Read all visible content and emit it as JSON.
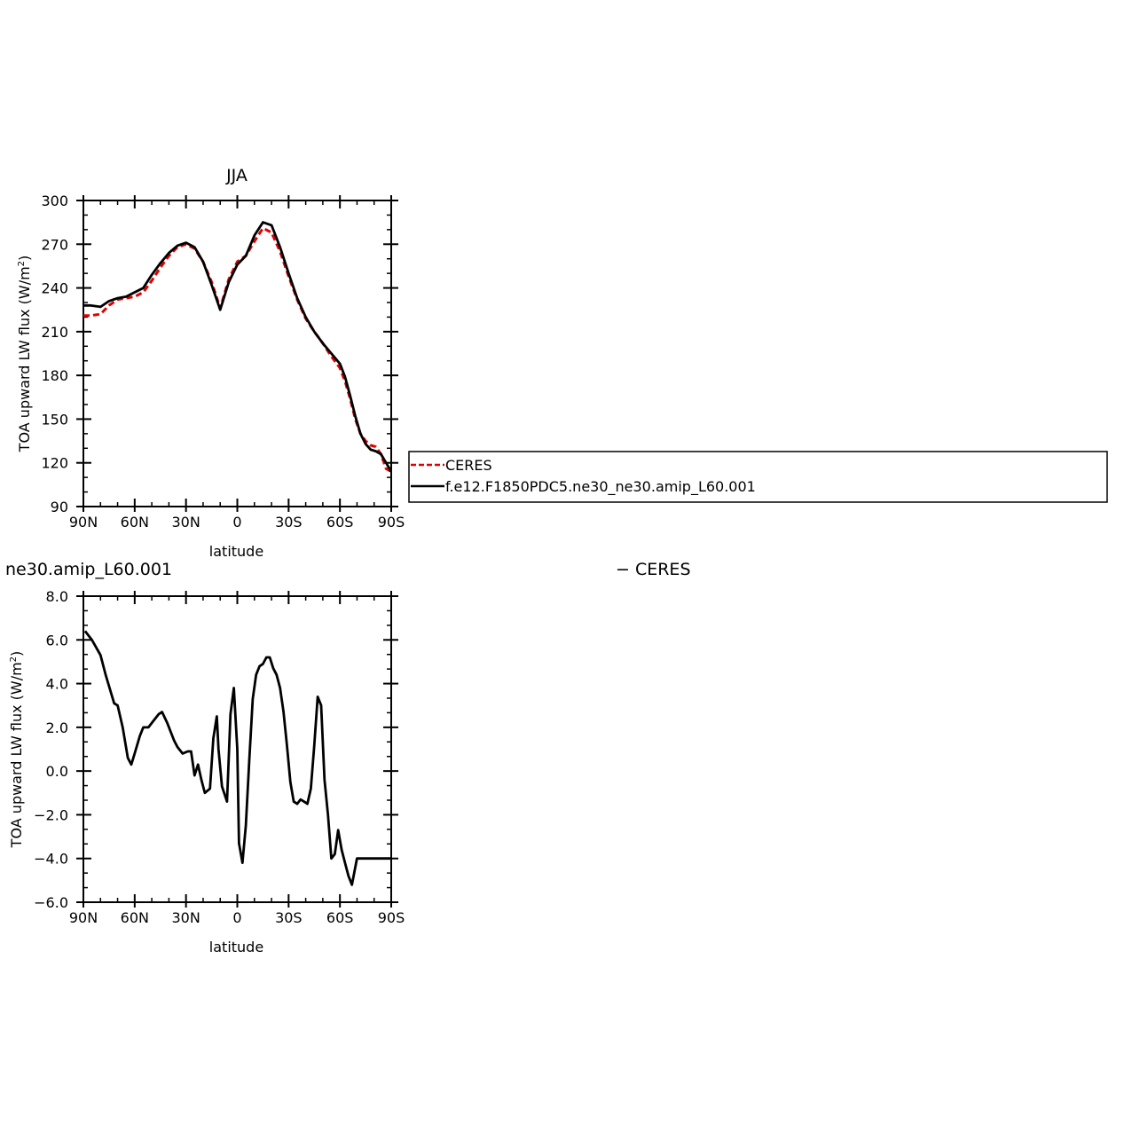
{
  "chart_data": [
    {
      "type": "line",
      "title": "JJA",
      "xlabel": "latitude",
      "ylabel": "TOA upward LW flux (W/m²)",
      "xlim": [
        90,
        -90
      ],
      "ylim": [
        90,
        300
      ],
      "xticks": [
        90,
        60,
        30,
        0,
        -30,
        -60,
        -90
      ],
      "xtick_labels": [
        "90N",
        "60N",
        "30N",
        "0",
        "30S",
        "60S",
        "90S"
      ],
      "yticks": [
        90,
        120,
        150,
        180,
        210,
        240,
        270,
        300
      ],
      "ytick_labels": [
        "90",
        "120",
        "150",
        "180",
        "210",
        "240",
        "270",
        "300"
      ],
      "grid": false,
      "legend_position": "right",
      "series": [
        {
          "name": "CERES",
          "color": "#e00000",
          "dash": "dashed",
          "x": [
            90,
            86,
            80,
            75,
            70,
            65,
            60,
            55,
            50,
            45,
            40,
            35,
            30,
            25,
            20,
            15,
            10,
            5,
            0,
            -5,
            -10,
            -15,
            -20,
            -25,
            -30,
            -35,
            -40,
            -45,
            -50,
            -55,
            -60,
            -63,
            -66,
            -69,
            -72,
            -75,
            -78,
            -81,
            -84,
            -87,
            -90
          ],
          "y": [
            221,
            221,
            222,
            228,
            232,
            233,
            234,
            237,
            245,
            254,
            262,
            268,
            270,
            267,
            258,
            244,
            226,
            246,
            258,
            262,
            272,
            281,
            278,
            265,
            248,
            232,
            219,
            210,
            202,
            193,
            185,
            176,
            164,
            150,
            140,
            135,
            132,
            131,
            126,
            116,
            114
          ]
        },
        {
          "name": "f.e12.F1850PDC5.ne30_ne30.amip_L60.001",
          "color": "#000000",
          "dash": "solid",
          "x": [
            90,
            86,
            80,
            75,
            70,
            65,
            60,
            55,
            50,
            45,
            40,
            35,
            30,
            25,
            20,
            15,
            10,
            5,
            0,
            -5,
            -10,
            -15,
            -20,
            -25,
            -30,
            -35,
            -40,
            -45,
            -50,
            -55,
            -60,
            -63,
            -66,
            -69,
            -72,
            -75,
            -78,
            -81,
            -84,
            -87,
            -90
          ],
          "y": [
            228,
            228,
            227,
            231,
            233,
            234,
            237,
            240,
            249,
            257,
            264,
            269,
            271,
            268,
            258,
            242,
            225,
            244,
            256,
            262,
            276,
            285,
            283,
            268,
            250,
            233,
            220,
            210,
            202,
            195,
            188,
            179,
            166,
            152,
            140,
            133,
            129,
            128,
            126,
            120,
            114
          ]
        }
      ]
    },
    {
      "type": "line",
      "title": "ne30.amip_L60.001",
      "title_right": "− CERES",
      "xlabel": "latitude",
      "ylabel": "TOA upward LW flux (W/m²)",
      "xlim": [
        90,
        -90
      ],
      "ylim": [
        -6,
        8
      ],
      "xticks": [
        90,
        60,
        30,
        0,
        -30,
        -60,
        -90
      ],
      "xtick_labels": [
        "90N",
        "60N",
        "30N",
        "0",
        "30S",
        "60S",
        "90S"
      ],
      "yticks": [
        -6,
        -4,
        -2,
        0,
        2,
        4,
        6,
        8
      ],
      "ytick_labels": [
        "−6.0",
        "−4.0",
        "−2.0",
        "0.0",
        "2.0",
        "4.0",
        "6.0",
        "8.0"
      ],
      "grid": false,
      "series": [
        {
          "color": "#000000",
          "dash": "solid",
          "x": [
            89,
            85,
            80,
            77,
            72,
            70,
            67,
            64,
            62,
            60,
            57,
            55,
            52,
            49,
            46,
            44,
            41,
            37,
            35,
            32,
            29,
            27,
            25,
            23,
            21,
            19,
            16,
            14,
            12,
            11,
            9,
            6,
            4,
            2,
            0,
            -1,
            -3,
            -5,
            -7,
            -9,
            -11,
            -13,
            -15,
            -17,
            -19,
            -21,
            -23,
            -25,
            -27,
            -29,
            -31,
            -33,
            -35,
            -37,
            -39,
            -41,
            -43,
            -45,
            -47,
            -49,
            -51,
            -53,
            -55,
            -57,
            -59,
            -61,
            -63,
            -65,
            -67,
            -70,
            -72,
            -74,
            -76,
            -78,
            -80,
            -83,
            -86,
            -89,
            -90
          ],
          "y": [
            6.4,
            6.0,
            5.3,
            4.4,
            3.1,
            3.0,
            2.0,
            0.6,
            0.3,
            0.8,
            1.6,
            2.0,
            2.0,
            2.3,
            2.6,
            2.7,
            2.2,
            1.4,
            1.1,
            0.8,
            0.9,
            0.9,
            -0.2,
            0.3,
            -0.4,
            -1.0,
            -0.8,
            1.5,
            2.5,
            1.0,
            -0.7,
            -1.4,
            2.6,
            3.8,
            1.0,
            -3.3,
            -4.2,
            -2.5,
            0.5,
            3.3,
            4.4,
            4.8,
            4.9,
            5.2,
            5.2,
            4.7,
            4.4,
            3.8,
            2.7,
            1.2,
            -0.5,
            -1.4,
            -1.5,
            -1.3,
            -1.4,
            -1.5,
            -0.8,
            1.2,
            3.4,
            3.0,
            -0.4,
            -2.0,
            -4.0,
            -3.8,
            -2.7,
            -3.6,
            -4.2,
            -4.8,
            -5.2,
            -4.0,
            -4.0,
            -4.0,
            -4.0,
            -4.0,
            -4.0,
            -4.0,
            -4.0,
            -4.0,
            -4.0
          ]
        }
      ]
    }
  ]
}
